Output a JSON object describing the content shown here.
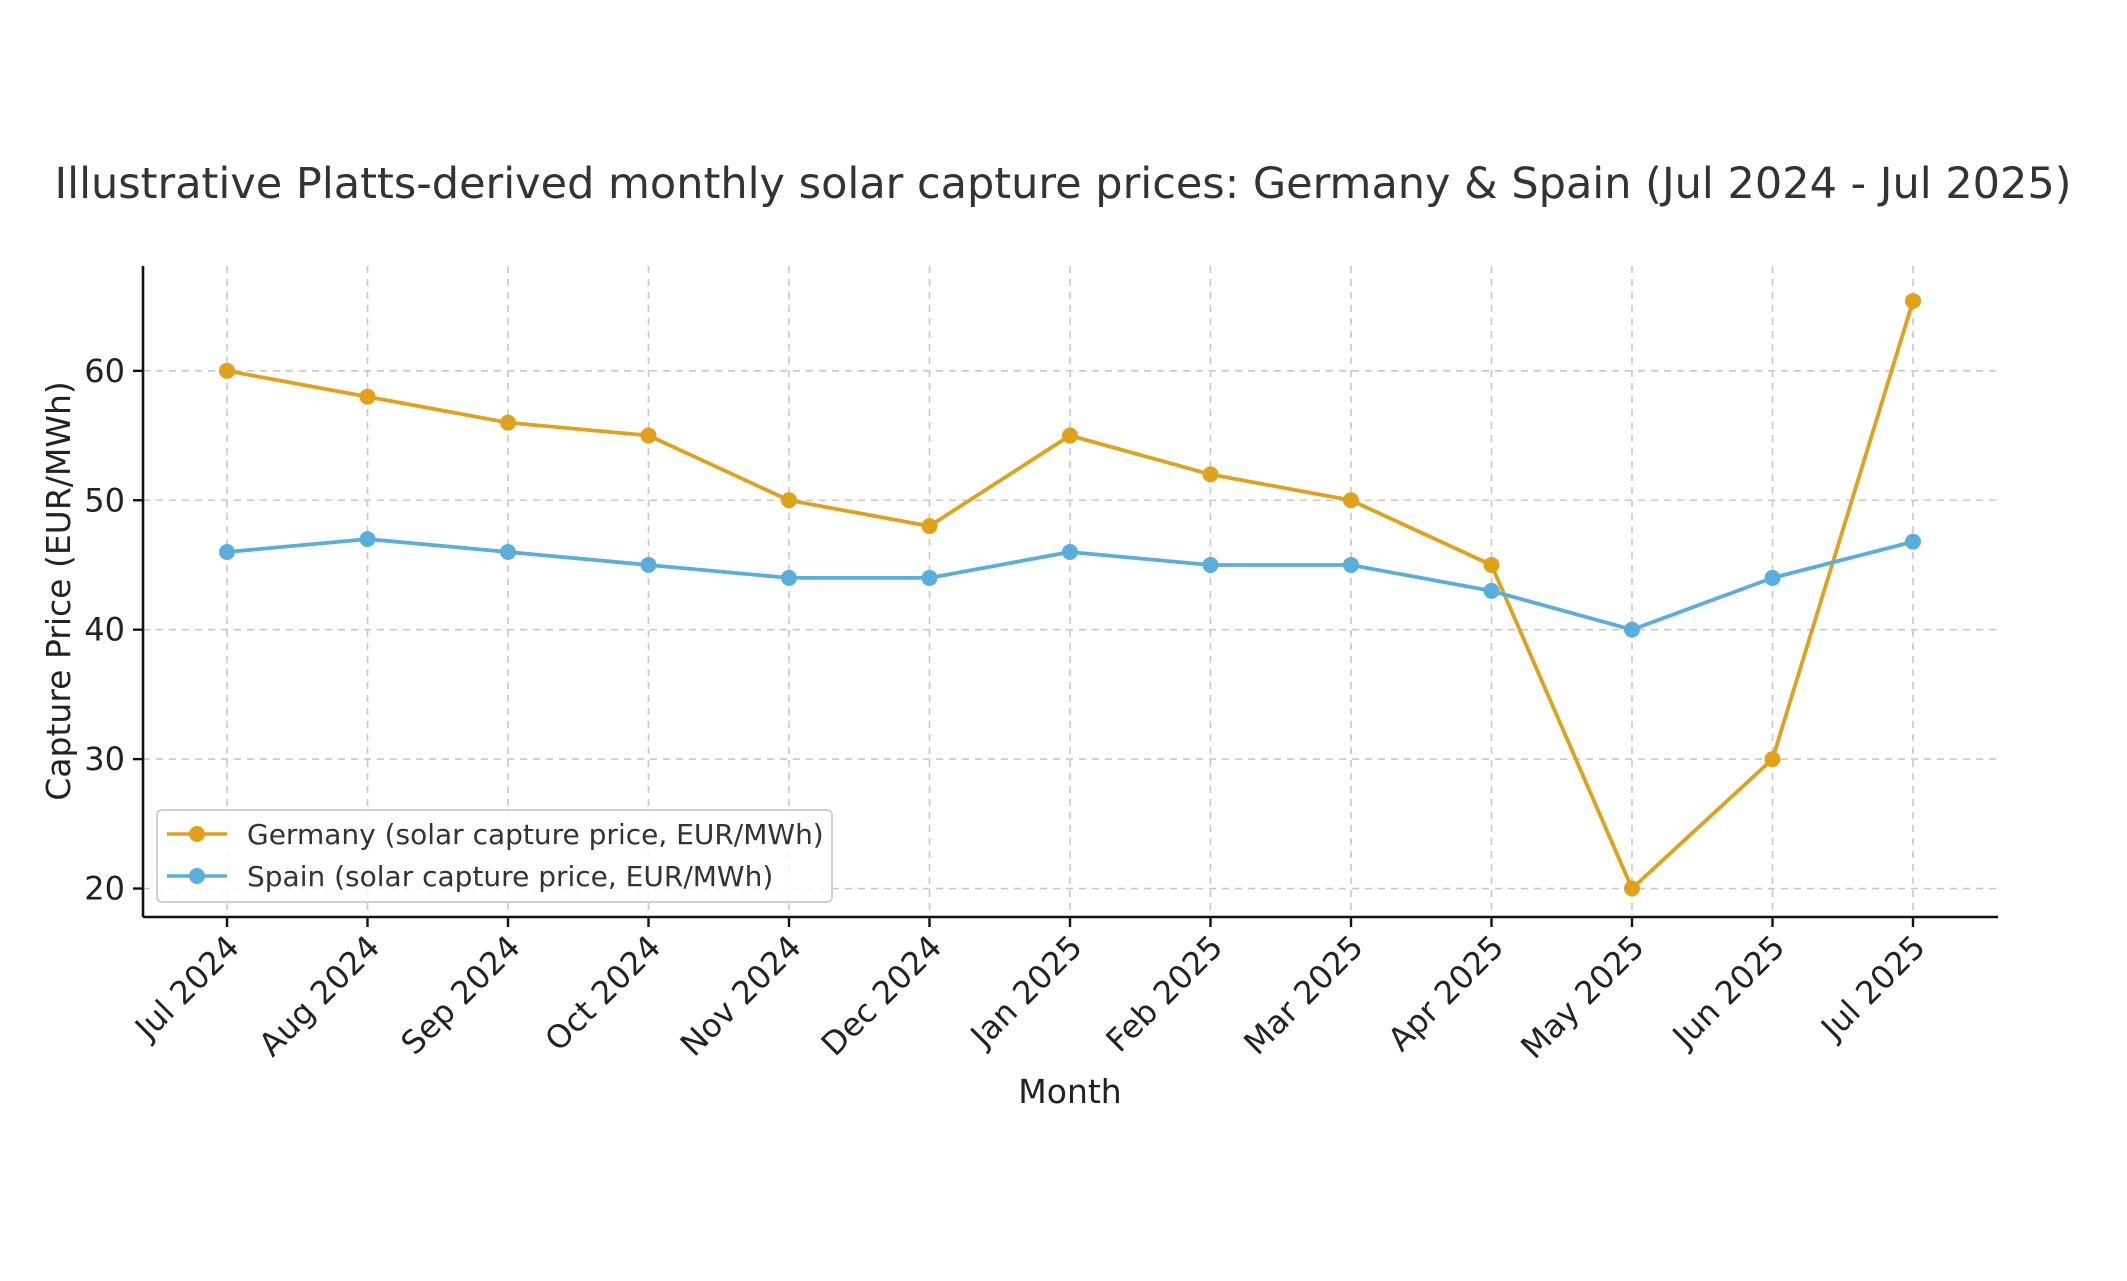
{
  "chart_data": {
    "type": "line",
    "title": "Illustrative Platts-derived monthly solar capture prices: Germany & Spain (Jul 2024 - Jul 2025)",
    "xlabel": "Month",
    "ylabel": "Capture Price (EUR/MWh)",
    "categories": [
      "Jul 2024",
      "Aug 2024",
      "Sep 2024",
      "Oct 2024",
      "Nov 2024",
      "Dec 2024",
      "Jan 2025",
      "Feb 2025",
      "Mar 2025",
      "Apr 2025",
      "May 2025",
      "Jun 2025",
      "Jul 2025"
    ],
    "ylim": [
      17.8,
      68.1
    ],
    "yticks": [
      20,
      30,
      40,
      50,
      60
    ],
    "grid": true,
    "legend_position": "lower-left",
    "series": [
      {
        "name": "Germany (solar capture price, EUR/MWh)",
        "color": "#E0A11B",
        "values": [
          60,
          58,
          56,
          55,
          50,
          48,
          55,
          52,
          50,
          45,
          20,
          30,
          65.4
        ]
      },
      {
        "name": "Spain (solar capture price, EUR/MWh)",
        "color": "#5AAEDC",
        "values": [
          46,
          47,
          46,
          45,
          44,
          44,
          46,
          45,
          45,
          43,
          40,
          44,
          46.8
        ]
      }
    ]
  }
}
